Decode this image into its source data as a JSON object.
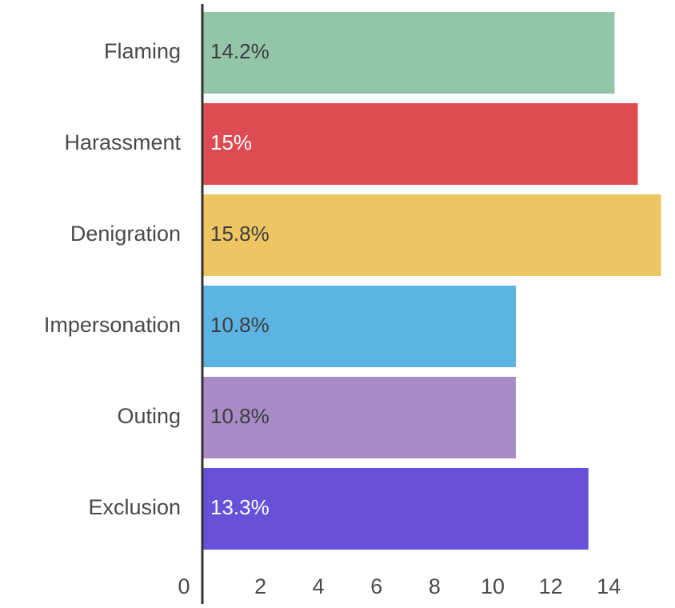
{
  "chart_data": {
    "type": "bar",
    "orientation": "horizontal",
    "categories": [
      "Flaming",
      "Harassment",
      "Denigration",
      "Impersonation",
      "Outing",
      "Exclusion"
    ],
    "values": [
      14.2,
      15,
      15.8,
      10.8,
      10.8,
      13.3
    ],
    "data_labels": [
      "14.2%",
      "15%",
      "15.8%",
      "10.8%",
      "10.8%",
      "13.3%"
    ],
    "colors": [
      "#93c6a9",
      "#dd4c52",
      "#eec563",
      "#5db4e2",
      "#a88bc7",
      "#6850d9"
    ],
    "label_colors": [
      "#3d3d3d",
      "#ffffff",
      "#3d3d3d",
      "#3d3d3d",
      "#3d3d3d",
      "#ffffff"
    ],
    "xticks": [
      0,
      2,
      4,
      6,
      8,
      10,
      12,
      14
    ],
    "xticklabels": [
      "0",
      "2",
      "4",
      "6",
      "8",
      "10",
      "12",
      "14"
    ],
    "xlim": [
      0,
      15.8
    ],
    "title": "",
    "xlabel": "",
    "ylabel": "",
    "grid": false,
    "legend": "none"
  }
}
